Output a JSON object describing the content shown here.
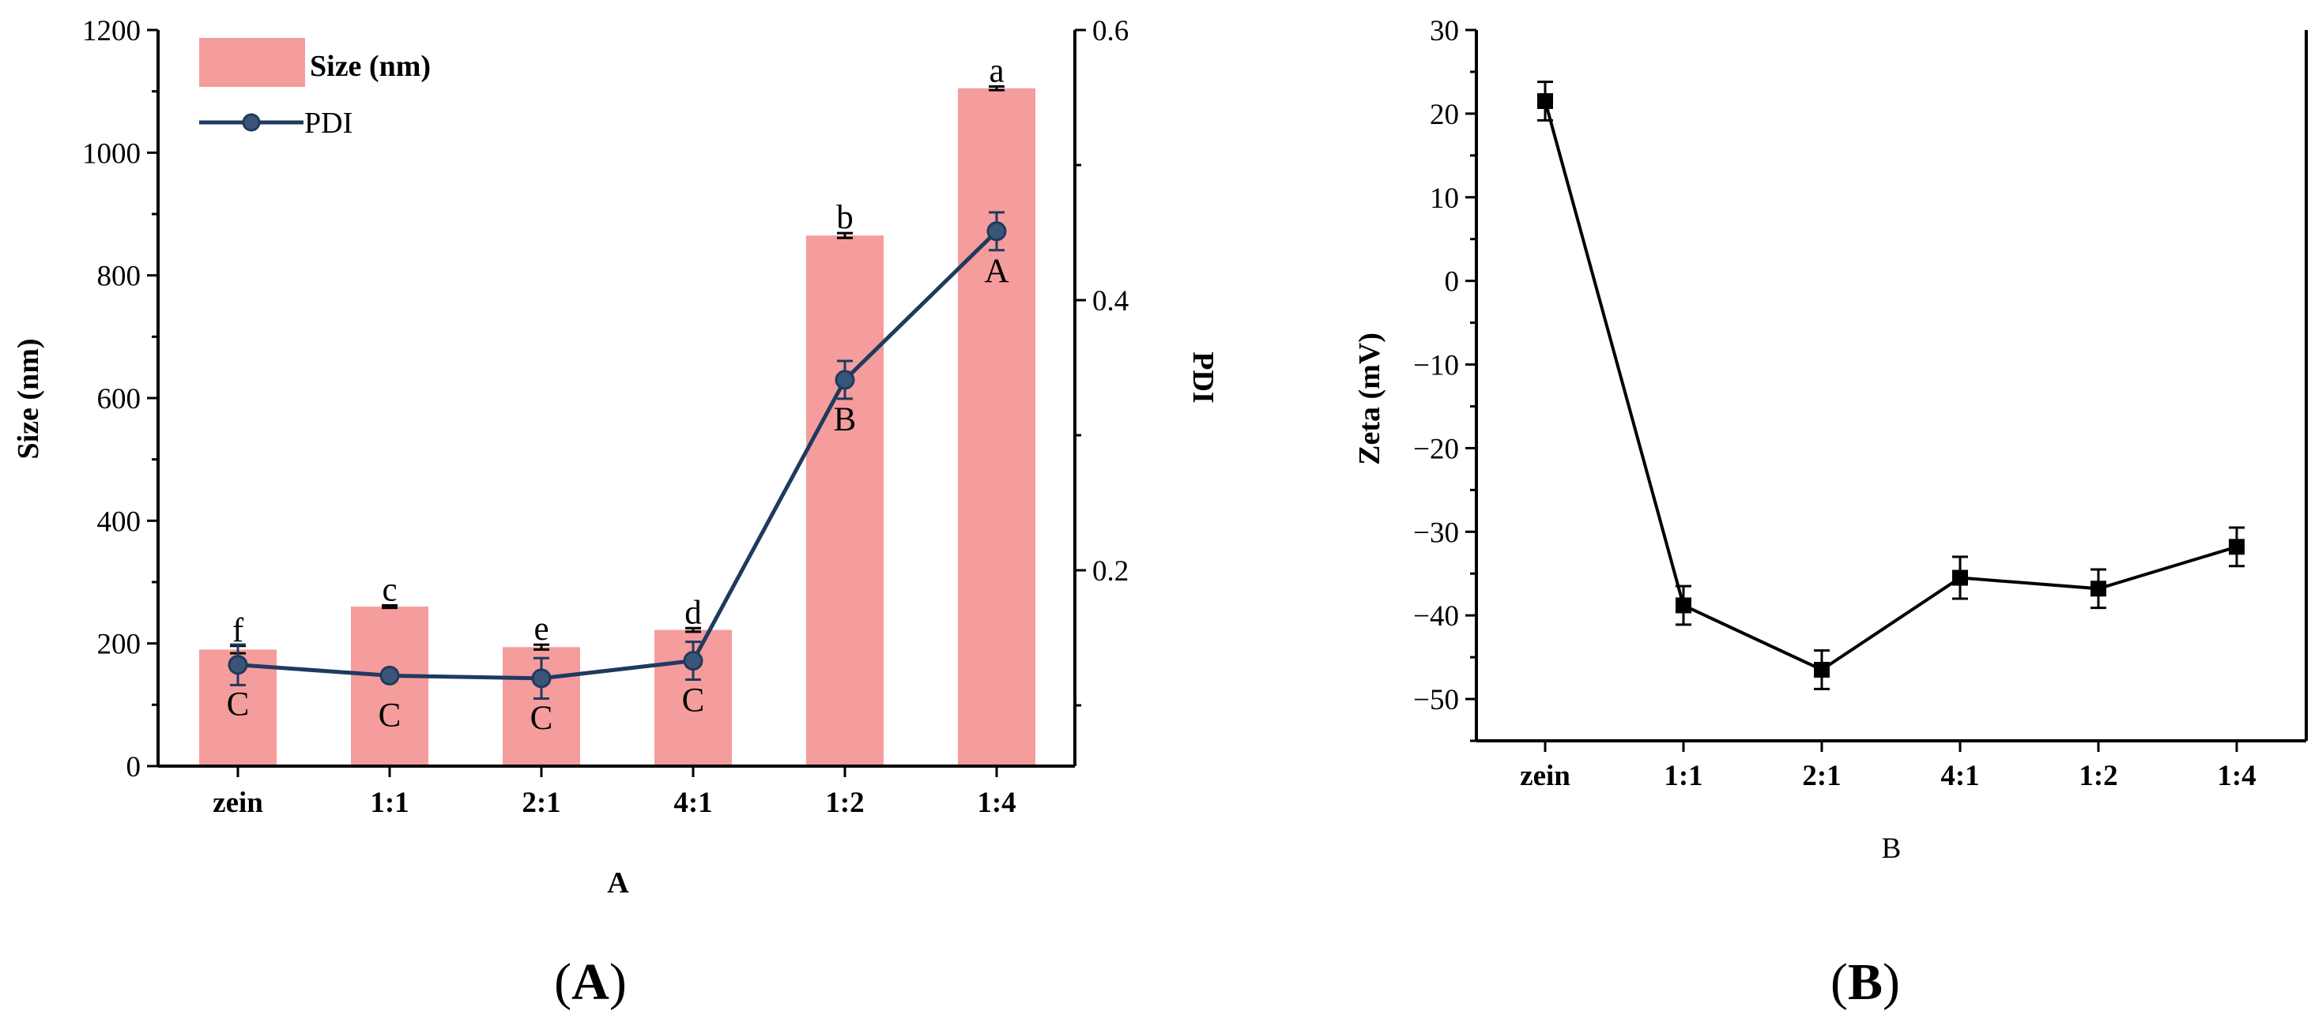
{
  "chart_data": [
    {
      "type": "bar",
      "categories": [
        "zein",
        "1:1",
        "2:1",
        "4:1",
        "1:2",
        "1:4"
      ],
      "xlabel": "A",
      "ylabel": "Size (nm)",
      "ylabel_right": "PDI",
      "ylim": [
        0,
        1200
      ],
      "yticks": [
        "0",
        "200",
        "400",
        "600",
        "800",
        "1000",
        "1200"
      ],
      "ylim_right": [
        0.055,
        0.6
      ],
      "yticks_right": [
        "0.2",
        "0.4",
        "0.6"
      ],
      "legend_position": "top-left",
      "colors": {
        "bar": "#f59c9c",
        "line": "#1f3a5f"
      },
      "series": [
        {
          "name": "Size (nm)",
          "kind": "bar",
          "axis": "left",
          "values": [
            190,
            260,
            194,
            222,
            865,
            1105
          ],
          "errors": [
            6,
            2,
            4,
            3,
            4,
            3
          ],
          "letters": [
            "f",
            "c",
            "e",
            "d",
            "b",
            "a"
          ]
        },
        {
          "name": "PDI",
          "kind": "line",
          "axis": "right",
          "values": [
            0.13,
            0.122,
            0.12,
            0.133,
            0.341,
            0.451
          ],
          "errors": [
            0.015,
            0.004,
            0.015,
            0.014,
            0.014,
            0.014
          ],
          "letters": [
            "C",
            "C",
            "C",
            "C",
            "B",
            "A"
          ]
        }
      ],
      "panel_label": {
        "open": "(",
        "letter": "A",
        "close": ")"
      }
    },
    {
      "type": "line",
      "categories": [
        "zein",
        "1:1",
        "2:1",
        "4:1",
        "1:2",
        "1:4"
      ],
      "xlabel": "B",
      "ylabel": "Zeta (mV)",
      "ylim": [
        -55,
        30
      ],
      "yticks": [
        "30",
        "20",
        "10",
        "0",
        "−10",
        "−20",
        "−30",
        "−40",
        "−50"
      ],
      "tick_values": [
        30,
        20,
        10,
        0,
        -10,
        -20,
        -30,
        -40,
        -50
      ],
      "colors": {
        "line": "#000000"
      },
      "series": [
        {
          "values": [
            21.5,
            -38.8,
            -46.5,
            -35.5,
            -36.8,
            -31.8
          ],
          "errors": [
            2.3,
            2.3,
            2.3,
            2.5,
            2.3,
            2.3
          ]
        }
      ],
      "panel_label": {
        "open": "(",
        "letter": "B",
        "close": ")"
      }
    }
  ]
}
